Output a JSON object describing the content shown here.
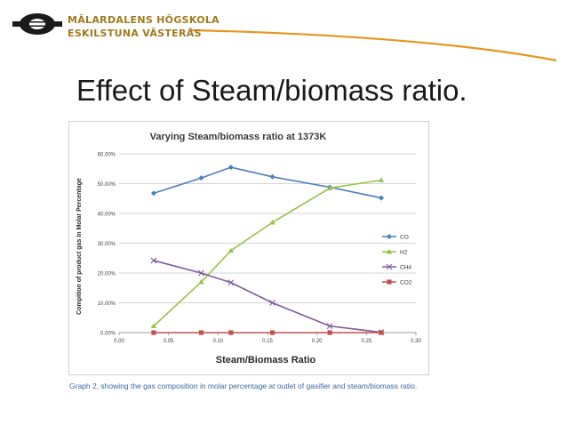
{
  "header": {
    "university_line1": "MÄLARDALENS HÖGSKOLA",
    "university_line2": "ESKILSTUNA VÄSTERÅS"
  },
  "slide": {
    "title": "Effect of Steam/biomass ratio.",
    "caption": "Graph 2, showing the gas composition in molar percentage at outlet of gasifier and steam/biomass ratio."
  },
  "colors": {
    "CO": "#4a7ebb",
    "H2": "#98c24a",
    "CH4": "#7e5a9b",
    "CO2": "#c0504d",
    "brand_orange": "#e8951d",
    "brand_gold": "#a07a1e"
  },
  "chart_data": {
    "type": "line",
    "title": "Varying Steam/biomass ratio at 1373K",
    "xlabel": "Steam/Biomass Ratio",
    "ylabel": "Compition of product gas in Molar Percentage",
    "xlim": [
      0,
      0.3
    ],
    "ylim": [
      0,
      60
    ],
    "x_ticks": [
      "0.00",
      "0.05",
      "0.10",
      "0.15",
      "0.20",
      "0.25",
      "0.30"
    ],
    "y_ticks": [
      "0.00%",
      "10.00%",
      "20.00%",
      "30.00%",
      "40.00%",
      "50.00%",
      "60.00%"
    ],
    "legend_position": "right",
    "x": [
      0.035,
      0.083,
      0.113,
      0.155,
      0.213,
      0.265
    ],
    "series": [
      {
        "name": "CO",
        "marker": "diamond",
        "values": [
          46.8,
          51.9,
          55.5,
          52.3,
          48.8,
          45.2
        ]
      },
      {
        "name": "H2",
        "marker": "triangle",
        "values": [
          2.2,
          17.0,
          27.5,
          37.0,
          48.5,
          51.2
        ]
      },
      {
        "name": "CH4",
        "marker": "x",
        "values": [
          24.2,
          20.0,
          16.8,
          10.0,
          2.2,
          0.1
        ]
      },
      {
        "name": "CO2",
        "marker": "square",
        "values": [
          0.0,
          0.0,
          0.0,
          0.0,
          0.0,
          0.0
        ]
      }
    ]
  }
}
